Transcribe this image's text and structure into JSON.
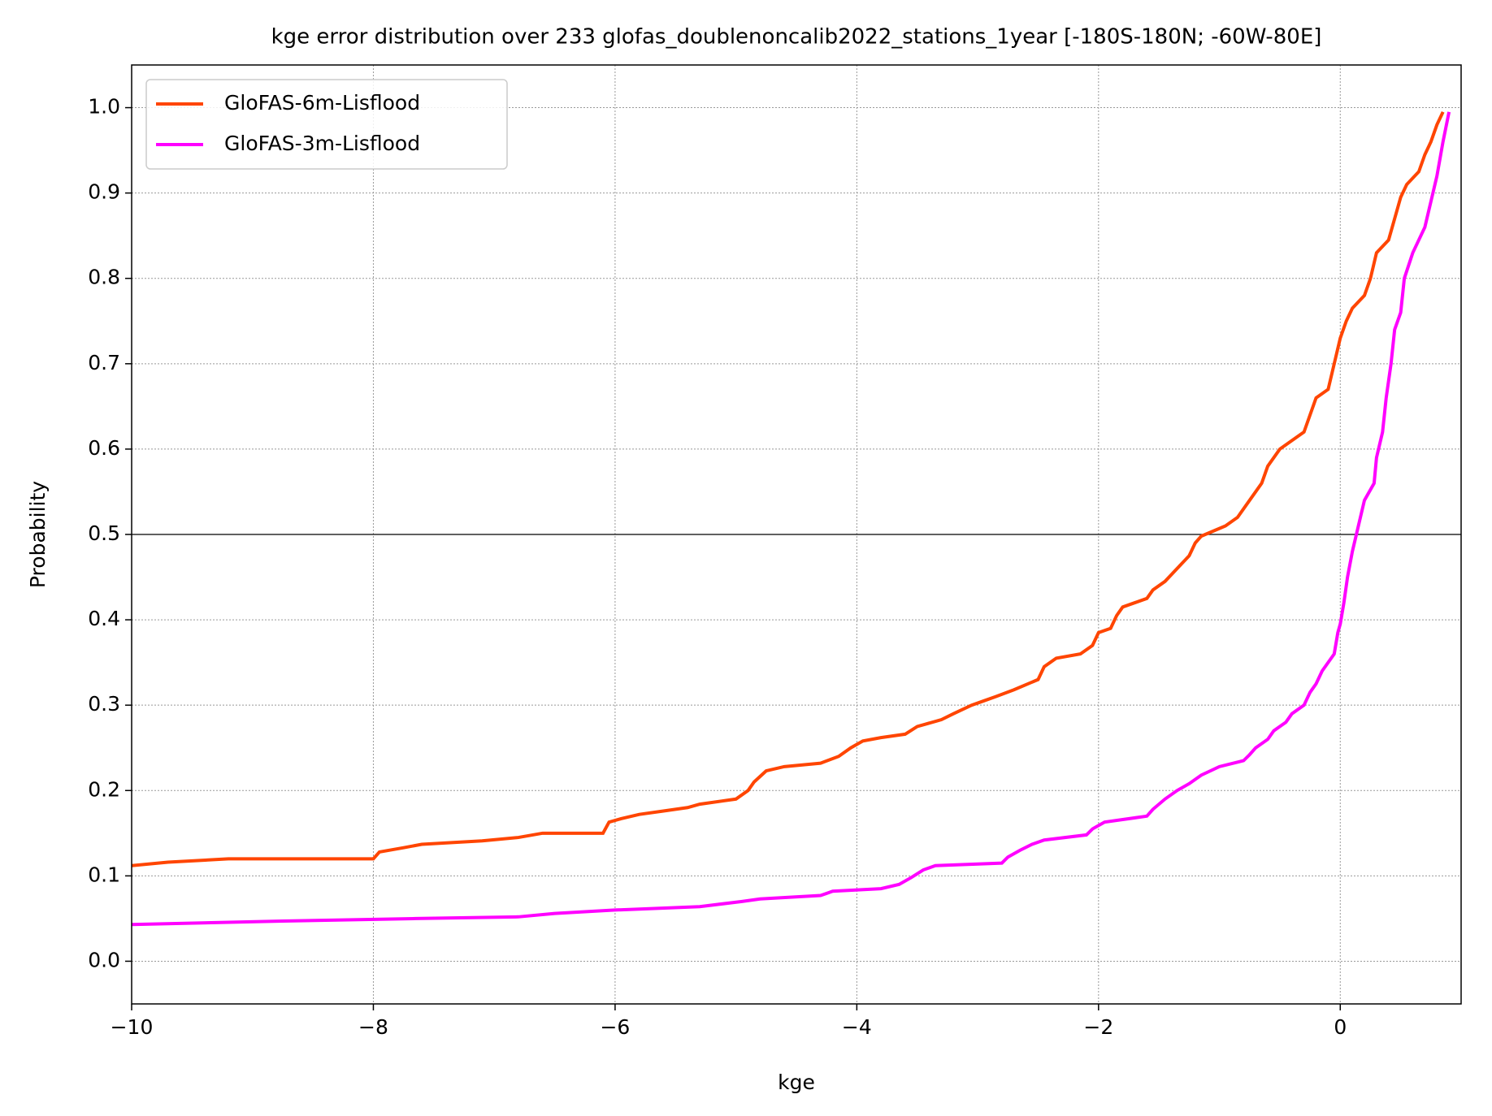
{
  "chart_data": {
    "type": "line",
    "title": "kge error distribution over 233 glofas_doublenoncalib2022_stations_1year [-180S-180N; -60W-80E]",
    "xlabel": "kge",
    "ylabel": "Probability",
    "xlim": [
      -10,
      1
    ],
    "ylim": [
      -0.05,
      1.05
    ],
    "xticks": [
      {
        "value": -10,
        "label": "−10"
      },
      {
        "value": -8,
        "label": "−8"
      },
      {
        "value": -6,
        "label": "−6"
      },
      {
        "value": -4,
        "label": "−4"
      },
      {
        "value": -2,
        "label": "−2"
      },
      0
    ],
    "yticks": [
      {
        "value": 0,
        "label": "0.0"
      },
      0.1,
      0.2,
      0.3,
      0.4,
      0.5,
      0.6,
      0.7,
      0.8,
      0.9,
      {
        "value": 1,
        "label": "1.0"
      }
    ],
    "grid": true,
    "hlines": [
      0.5
    ],
    "legend": "upper left",
    "series": [
      {
        "name": "GloFAS-6m-Lisflood",
        "color": "#ff4500",
        "x": [
          -10,
          -9.7,
          -9.2,
          -8.0,
          -7.95,
          -7.75,
          -7.6,
          -7.1,
          -6.8,
          -6.6,
          -6.1,
          -6.05,
          -5.95,
          -5.8,
          -5.6,
          -5.4,
          -5.3,
          -5.0,
          -4.9,
          -4.85,
          -4.75,
          -4.6,
          -4.3,
          -4.15,
          -4.05,
          -3.95,
          -3.8,
          -3.6,
          -3.5,
          -3.3,
          -3.2,
          -3.05,
          -2.95,
          -2.85,
          -2.7,
          -2.5,
          -2.45,
          -2.35,
          -2.15,
          -2.05,
          -2.0,
          -1.9,
          -1.85,
          -1.8,
          -1.7,
          -1.6,
          -1.55,
          -1.45,
          -1.35,
          -1.25,
          -1.2,
          -1.15,
          -0.95,
          -0.85,
          -0.75,
          -0.65,
          -0.6,
          -0.5,
          -0.4,
          -0.3,
          -0.25,
          -0.2,
          -0.1,
          -0.05,
          0.0,
          0.05,
          0.1,
          0.2,
          0.25,
          0.3,
          0.4,
          0.45,
          0.5,
          0.55,
          0.65,
          0.7,
          0.75,
          0.8,
          0.85
        ],
        "values": [
          0.112,
          0.116,
          0.12,
          0.12,
          0.128,
          0.133,
          0.137,
          0.141,
          0.145,
          0.15,
          0.15,
          0.163,
          0.167,
          0.172,
          0.176,
          0.18,
          0.184,
          0.19,
          0.2,
          0.21,
          0.223,
          0.228,
          0.232,
          0.24,
          0.25,
          0.258,
          0.262,
          0.266,
          0.275,
          0.283,
          0.29,
          0.3,
          0.305,
          0.31,
          0.318,
          0.33,
          0.345,
          0.355,
          0.36,
          0.37,
          0.385,
          0.39,
          0.405,
          0.415,
          0.42,
          0.425,
          0.435,
          0.445,
          0.46,
          0.475,
          0.49,
          0.498,
          0.51,
          0.52,
          0.54,
          0.56,
          0.58,
          0.6,
          0.61,
          0.62,
          0.64,
          0.66,
          0.67,
          0.7,
          0.73,
          0.75,
          0.765,
          0.78,
          0.8,
          0.83,
          0.845,
          0.87,
          0.895,
          0.91,
          0.925,
          0.945,
          0.96,
          0.98,
          0.995
        ]
      },
      {
        "name": "GloFAS-3m-Lisflood",
        "color": "#ff00ff",
        "x": [
          -10,
          -8.75,
          -7.65,
          -6.8,
          -6.5,
          -6.0,
          -5.3,
          -4.95,
          -4.8,
          -4.3,
          -4.2,
          -3.8,
          -3.65,
          -3.55,
          -3.45,
          -3.35,
          -2.8,
          -2.75,
          -2.65,
          -2.55,
          -2.45,
          -2.1,
          -2.05,
          -1.95,
          -1.6,
          -1.55,
          -1.45,
          -1.35,
          -1.25,
          -1.15,
          -1.0,
          -0.8,
          -0.75,
          -0.7,
          -0.6,
          -0.55,
          -0.45,
          -0.4,
          -0.3,
          -0.25,
          -0.2,
          -0.15,
          -0.05,
          -0.02,
          0.0,
          0.03,
          0.06,
          0.1,
          0.15,
          0.2,
          0.28,
          0.3,
          0.35,
          0.38,
          0.42,
          0.45,
          0.5,
          0.53,
          0.6,
          0.7,
          0.75,
          0.8,
          0.85,
          0.9
        ],
        "values": [
          0.043,
          0.047,
          0.05,
          0.052,
          0.056,
          0.06,
          0.064,
          0.07,
          0.073,
          0.077,
          0.082,
          0.085,
          0.09,
          0.098,
          0.107,
          0.112,
          0.115,
          0.122,
          0.13,
          0.137,
          0.142,
          0.148,
          0.155,
          0.163,
          0.17,
          0.178,
          0.19,
          0.2,
          0.208,
          0.218,
          0.228,
          0.235,
          0.242,
          0.25,
          0.26,
          0.27,
          0.28,
          0.29,
          0.3,
          0.315,
          0.325,
          0.34,
          0.36,
          0.385,
          0.395,
          0.42,
          0.45,
          0.48,
          0.51,
          0.54,
          0.56,
          0.59,
          0.62,
          0.66,
          0.7,
          0.74,
          0.76,
          0.8,
          0.83,
          0.86,
          0.89,
          0.92,
          0.96,
          0.995
        ]
      }
    ]
  }
}
